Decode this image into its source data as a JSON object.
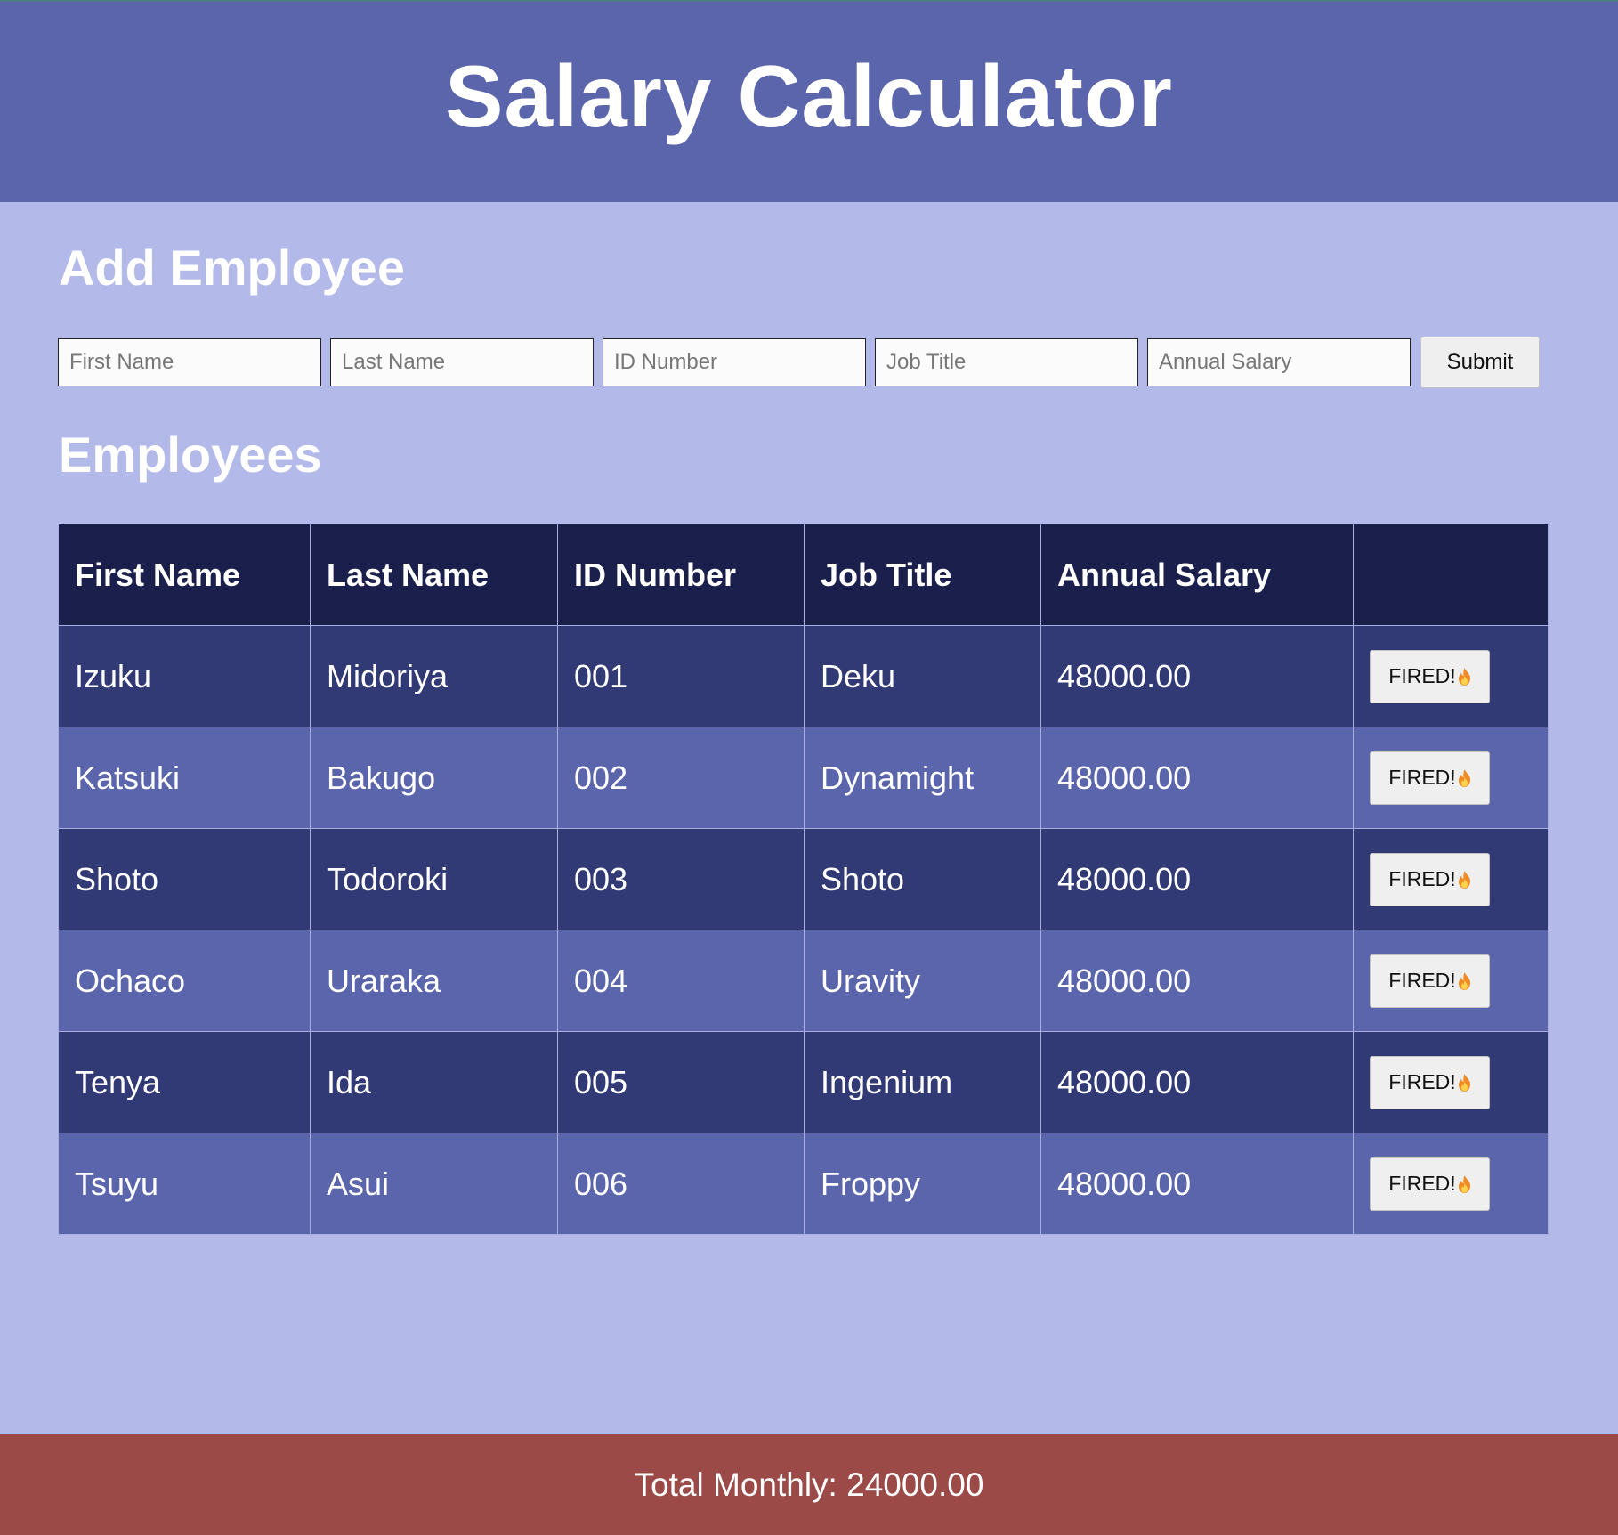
{
  "header": {
    "title": "Salary Calculator"
  },
  "add_section": {
    "title": "Add Employee",
    "fields": {
      "first_name": {
        "placeholder": "First Name",
        "value": ""
      },
      "last_name": {
        "placeholder": "Last Name",
        "value": ""
      },
      "id_number": {
        "placeholder": "ID Number",
        "value": ""
      },
      "job_title": {
        "placeholder": "Job Title",
        "value": ""
      },
      "annual_salary": {
        "placeholder": "Annual Salary",
        "value": ""
      }
    },
    "submit_label": "Submit"
  },
  "employees_section": {
    "title": "Employees",
    "columns": [
      "First Name",
      "Last Name",
      "ID Number",
      "Job Title",
      "Annual Salary",
      ""
    ],
    "rows": [
      {
        "first": "Izuku",
        "last": "Midoriya",
        "id": "001",
        "title": "Deku",
        "salary": "48000.00",
        "action": "FIRED!"
      },
      {
        "first": "Katsuki",
        "last": "Bakugo",
        "id": "002",
        "title": "Dynamight",
        "salary": "48000.00",
        "action": "FIRED!"
      },
      {
        "first": "Shoto",
        "last": "Todoroki",
        "id": "003",
        "title": "Shoto",
        "salary": "48000.00",
        "action": "FIRED!"
      },
      {
        "first": "Ochaco",
        "last": "Uraraka",
        "id": "004",
        "title": "Uravity",
        "salary": "48000.00",
        "action": "FIRED!"
      },
      {
        "first": "Tenya",
        "last": "Ida",
        "id": "005",
        "title": "Ingenium",
        "salary": "48000.00",
        "action": "FIRED!"
      },
      {
        "first": "Tsuyu",
        "last": "Asui",
        "id": "006",
        "title": "Froppy",
        "salary": "48000.00",
        "action": "FIRED!"
      }
    ],
    "action_icon": "fire-icon"
  },
  "footer": {
    "total_text": "Total Monthly: 24000.00"
  },
  "colors": {
    "page_bg": "#b3b9e8",
    "header_bg": "#5b65ab",
    "table_header_bg": "#1a1f4b",
    "row_dark": "#323a75",
    "row_light": "#5b65ab",
    "footer_bg": "#9b4a47"
  }
}
